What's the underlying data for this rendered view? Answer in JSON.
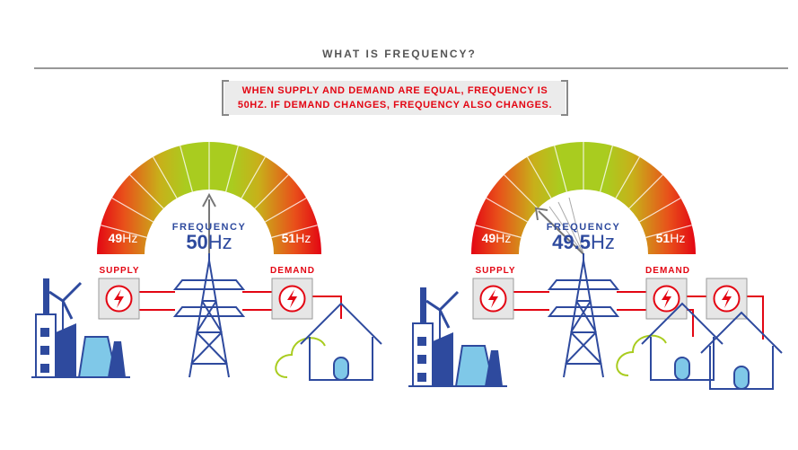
{
  "header": {
    "title": "WHAT IS FREQUENCY?"
  },
  "callout": {
    "lines": [
      "WHEN SUPPLY AND DEMAND ARE EQUAL, FREQUENCY IS",
      "50HZ. IF DEMAND CHANGES, FREQUENCY ALSO CHANGES."
    ]
  },
  "panels": [
    {
      "gauge": {
        "low": {
          "number": "49",
          "unit": "Hz"
        },
        "label": "FREQUENCY",
        "reading": {
          "number": "50",
          "unit": "Hz"
        },
        "high": {
          "number": "51",
          "unit": "Hz"
        }
      },
      "supply": "SUPPLY",
      "demand": "DEMAND"
    },
    {
      "gauge": {
        "low": {
          "number": "49",
          "unit": "Hz"
        },
        "label": "FREQUENCY",
        "reading": {
          "number": "49.5",
          "unit": "Hz"
        },
        "high": {
          "number": "51",
          "unit": "Hz"
        }
      },
      "supply": "SUPPLY",
      "demand": "DEMAND"
    }
  ]
}
